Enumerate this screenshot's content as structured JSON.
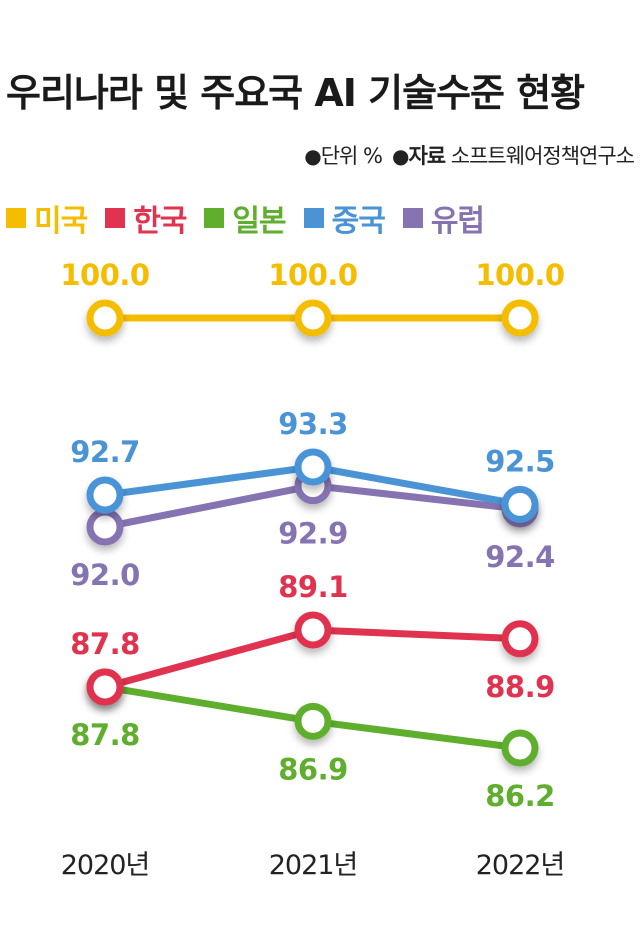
{
  "header": {
    "title": "우리나라 및 주요국 AI 기술수준 현황",
    "unit_label": "단위",
    "unit_value": "%",
    "source_label": "자료",
    "source_value": "소프트웨어정책연구소",
    "bullet": "●"
  },
  "chart_data": {
    "type": "line",
    "title": "우리나라 및 주요국 AI 기술수준 현황",
    "unit": "%",
    "categories": [
      "2020년",
      "2021년",
      "2022년"
    ],
    "series": [
      {
        "name": "미국",
        "color": "#f5bd00",
        "values": [
          100.0,
          100.0,
          100.0
        ],
        "labels": [
          "100.0",
          "100.0",
          "100.0"
        ]
      },
      {
        "name": "한국",
        "color": "#e0334f",
        "values": [
          87.8,
          89.1,
          88.9
        ],
        "labels": [
          "87.8",
          "89.1",
          "88.9"
        ]
      },
      {
        "name": "일본",
        "color": "#5fae2e",
        "values": [
          87.8,
          86.9,
          86.2
        ],
        "labels": [
          "87.8",
          "86.9",
          "86.2"
        ]
      },
      {
        "name": "중국",
        "color": "#4a94d6",
        "values": [
          92.7,
          93.3,
          92.5
        ],
        "labels": [
          "92.7",
          "93.3",
          "92.5"
        ]
      },
      {
        "name": "유럽",
        "color": "#8673b2",
        "values": [
          92.0,
          92.9,
          92.4
        ],
        "labels": [
          "92.0",
          "92.9",
          "92.4"
        ]
      }
    ],
    "legend_position": "top-left",
    "grid": false
  }
}
